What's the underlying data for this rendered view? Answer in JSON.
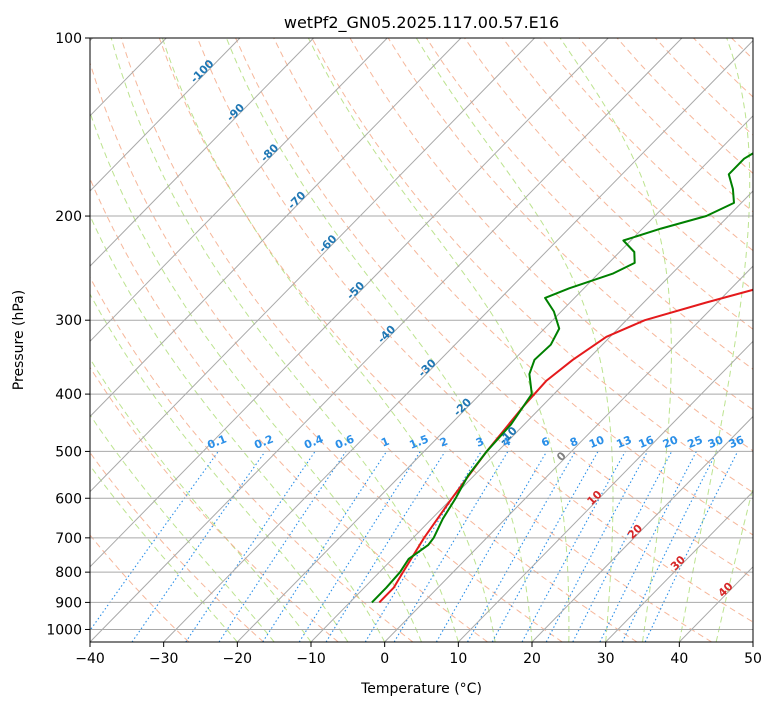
{
  "chart_data": {
    "type": "line",
    "title": "wetPf2_GN05.2025.117.00.57.E16",
    "xlabel": "Temperature (°C)",
    "ylabel": "Pressure (hPa)",
    "xlim": [
      -40,
      50
    ],
    "ylim": [
      1050,
      100
    ],
    "y_scale": "log",
    "grid": true,
    "x_ticks": [
      "−40",
      "−30",
      "−20",
      "−10",
      "0",
      "10",
      "20",
      "30",
      "40",
      "50"
    ],
    "y_ticks": [
      "100",
      "200",
      "300",
      "400",
      "500",
      "600",
      "700",
      "800",
      "900",
      "1000"
    ],
    "skewed_isotherm_labels": [
      "-100",
      "-90",
      "-80",
      "-70",
      "-60",
      "-50",
      "-40",
      "-30",
      "-20",
      "-10",
      "0",
      "10",
      "20",
      "30",
      "40"
    ],
    "mixing_ratio_labels": [
      "0.1",
      "0.2",
      "0.4",
      "0.6",
      "1",
      "1.5",
      "2",
      "3",
      "4",
      "6",
      "8",
      "10",
      "13",
      "16",
      "20",
      "25",
      "30",
      "36"
    ],
    "series": [
      {
        "color": "#e41a1c",
        "points": [
          {
            "p": 900,
            "t": -6.0
          },
          {
            "p": 850,
            "t": -6.0
          },
          {
            "p": 800,
            "t": -6.8
          },
          {
            "p": 700,
            "t": -8.5
          },
          {
            "p": 600,
            "t": -10.0
          },
          {
            "p": 500,
            "t": -11.5
          },
          {
            "p": 420,
            "t": -12.5
          },
          {
            "p": 380,
            "t": -12.8
          },
          {
            "p": 350,
            "t": -12.0
          },
          {
            "p": 320,
            "t": -10.5
          },
          {
            "p": 300,
            "t": -7.5
          },
          {
            "p": 280,
            "t": -1.5
          },
          {
            "p": 260,
            "t": 5.5
          },
          {
            "p": 240,
            "t": 9.5
          },
          {
            "p": 220,
            "t": 11.5
          },
          {
            "p": 200,
            "t": 12.5
          },
          {
            "p": 175,
            "t": 14.5
          },
          {
            "p": 150,
            "t": 17.0
          },
          {
            "p": 130,
            "t": 19.0
          },
          {
            "p": 115,
            "t": 21.0
          },
          {
            "p": 100,
            "t": 23.0
          }
        ]
      },
      {
        "color": "#008000",
        "points": [
          {
            "p": 900,
            "t": -7.0
          },
          {
            "p": 850,
            "t": -7.0
          },
          {
            "p": 800,
            "t": -7.2
          },
          {
            "p": 760,
            "t": -7.8
          },
          {
            "p": 720,
            "t": -7.0
          },
          {
            "p": 700,
            "t": -7.2
          },
          {
            "p": 650,
            "t": -8.5
          },
          {
            "p": 600,
            "t": -9.5
          },
          {
            "p": 550,
            "t": -10.8
          },
          {
            "p": 500,
            "t": -11.5
          },
          {
            "p": 450,
            "t": -11.8
          },
          {
            "p": 400,
            "t": -13.0
          },
          {
            "p": 370,
            "t": -16.0
          },
          {
            "p": 350,
            "t": -17.2
          },
          {
            "p": 330,
            "t": -17.0
          },
          {
            "p": 310,
            "t": -18.0
          },
          {
            "p": 290,
            "t": -21.0
          },
          {
            "p": 275,
            "t": -24.0
          },
          {
            "p": 265,
            "t": -22.0
          },
          {
            "p": 250,
            "t": -18.0
          },
          {
            "p": 240,
            "t": -16.5
          },
          {
            "p": 230,
            "t": -18.0
          },
          {
            "p": 220,
            "t": -21.0
          },
          {
            "p": 210,
            "t": -17.5
          },
          {
            "p": 200,
            "t": -13.0
          },
          {
            "p": 190,
            "t": -11.0
          },
          {
            "p": 180,
            "t": -13.0
          },
          {
            "p": 170,
            "t": -15.5
          },
          {
            "p": 160,
            "t": -15.5
          },
          {
            "p": 150,
            "t": -14.0
          },
          {
            "p": 140,
            "t": -12.5
          },
          {
            "p": 130,
            "t": -10.5
          },
          {
            "p": 120,
            "t": -8.5
          },
          {
            "p": 110,
            "t": -6.0
          },
          {
            "p": 100,
            "t": -3.0
          }
        ]
      }
    ]
  },
  "colors": {
    "isotherm": "#a9a9a9",
    "dry_adiabat": "#f4a582",
    "moist_adiabat": "#a6d96a",
    "mixing_ratio": "#2a8fe8",
    "isotherm_label": "#1f77b4",
    "warm_label": "#d62728",
    "zero_label": "#808080"
  }
}
